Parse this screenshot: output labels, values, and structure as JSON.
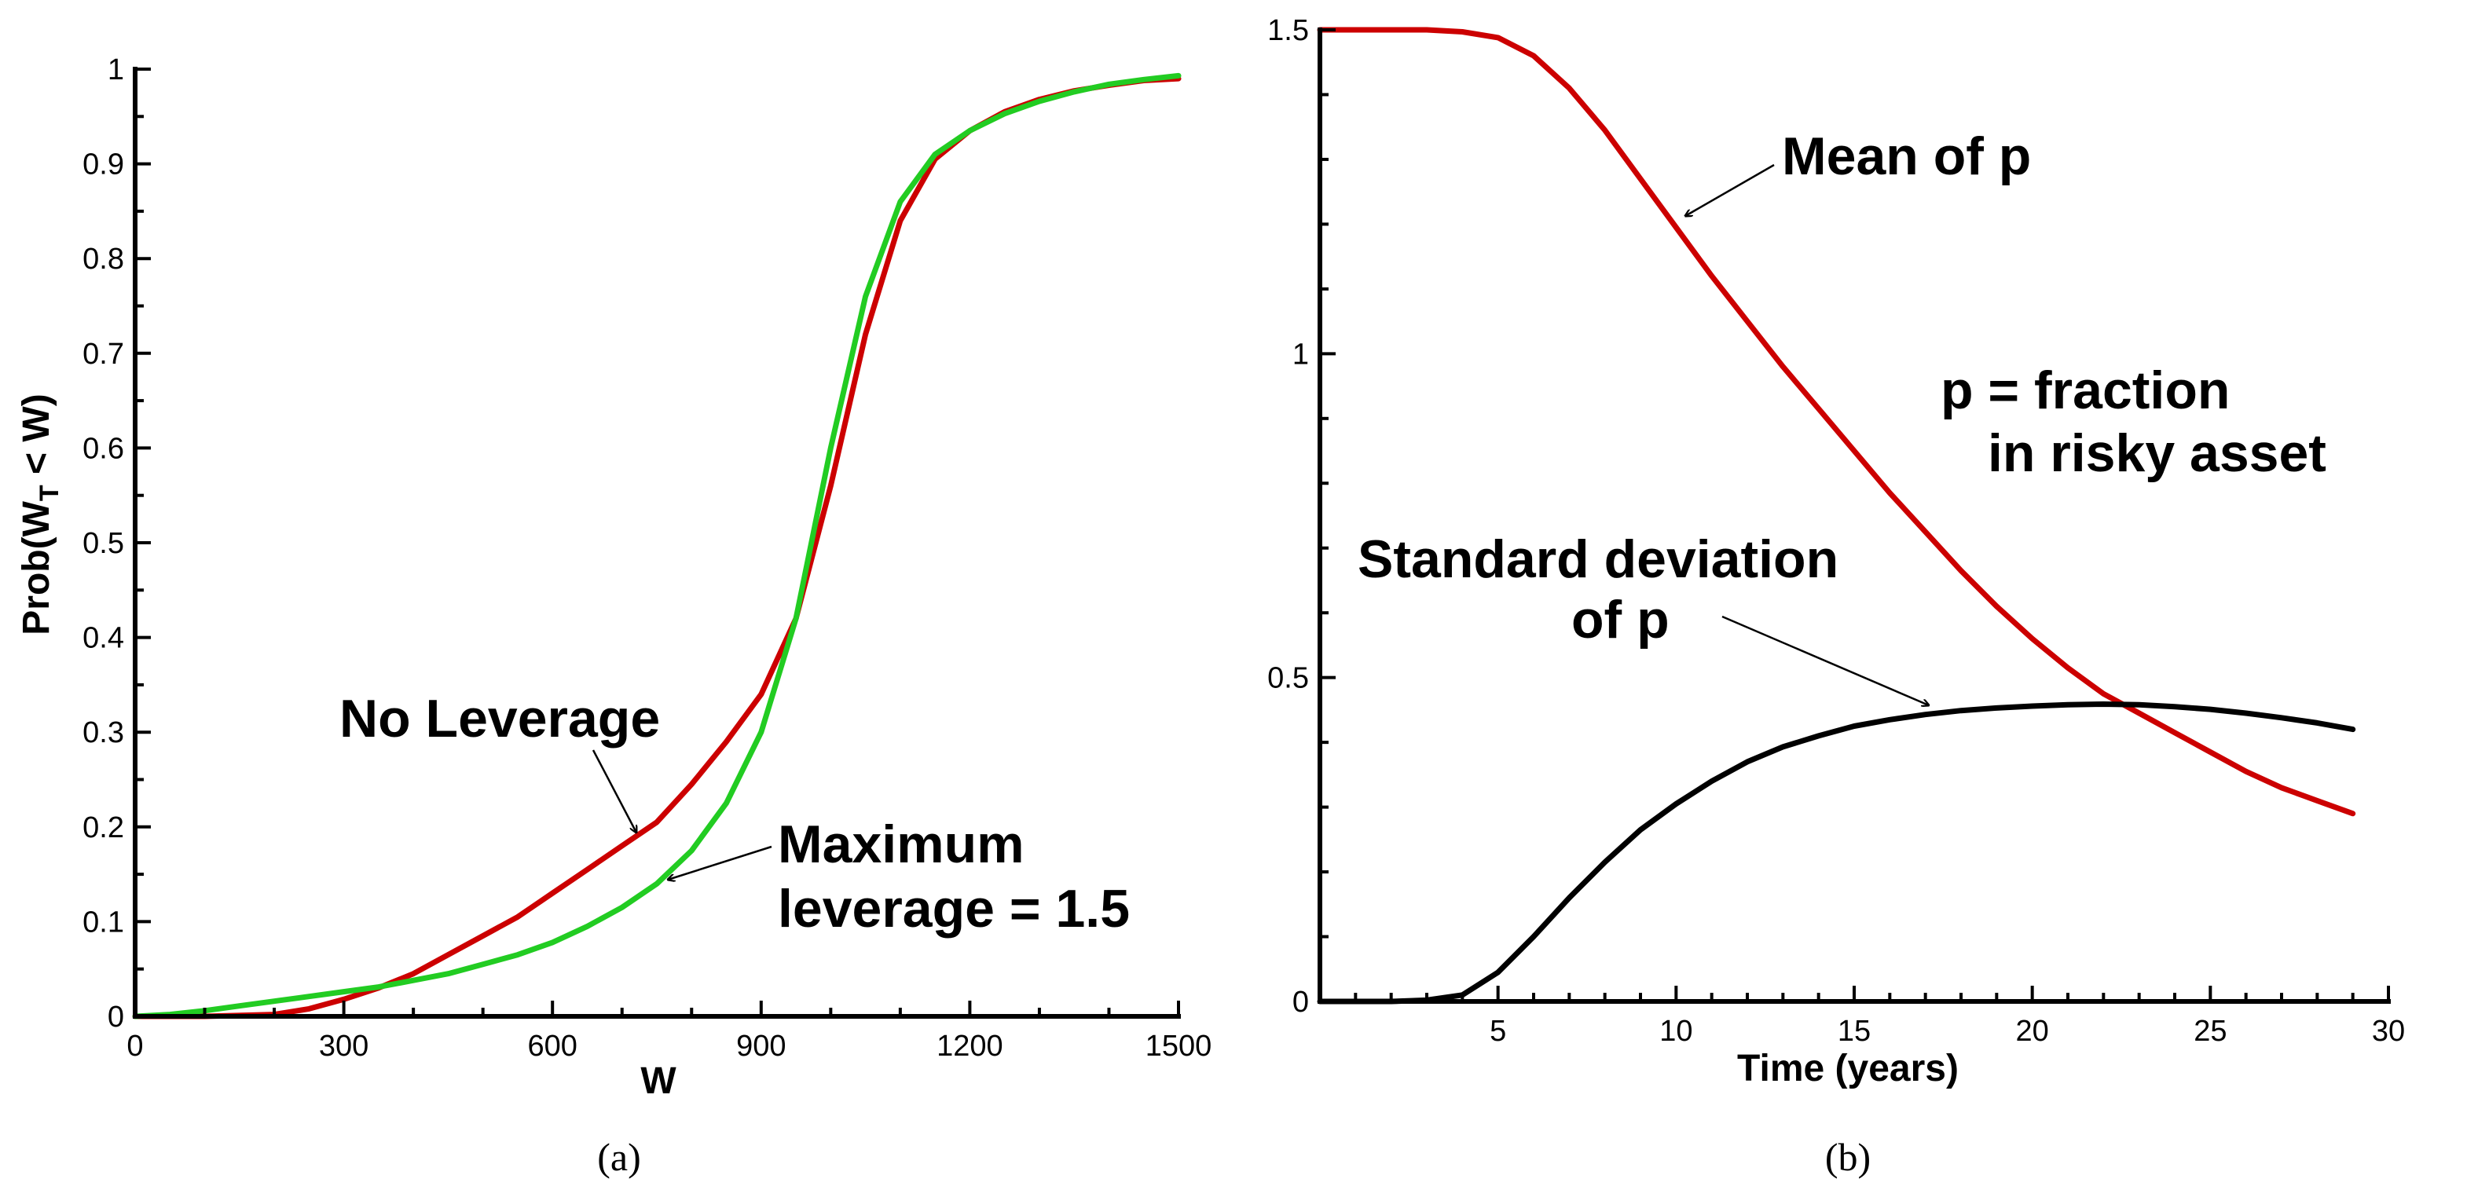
{
  "chart_data": [
    {
      "type": "line",
      "panel_label": "(a)",
      "xlabel": "W",
      "ylabel": "Prob(W_T < W)",
      "ylabel_parts": {
        "main": "Prob(W",
        "sub": "T",
        "rest": " < W)"
      },
      "xlim": [
        0,
        1500
      ],
      "ylim": [
        0,
        1
      ],
      "xticks": [
        0,
        300,
        600,
        900,
        1200,
        1500
      ],
      "yticks": [
        0,
        0.1,
        0.2,
        0.3,
        0.4,
        0.5,
        0.6,
        0.7,
        0.8,
        0.9,
        1
      ],
      "ytick_labels": [
        "0",
        "0.1",
        "0.2",
        "0.3",
        "0.4",
        "0.5",
        "0.6",
        "0.7",
        "0.8",
        "0.9",
        "1"
      ],
      "series": [
        {
          "name": "No Leverage",
          "color": "#cc0000",
          "x": [
            0,
            100,
            200,
            250,
            300,
            350,
            400,
            450,
            500,
            550,
            600,
            650,
            700,
            750,
            800,
            850,
            900,
            950,
            1000,
            1050,
            1100,
            1150,
            1200,
            1250,
            1300,
            1350,
            1400,
            1450,
            1500
          ],
          "y": [
            0,
            0,
            0.002,
            0.008,
            0.018,
            0.03,
            0.045,
            0.065,
            0.085,
            0.105,
            0.13,
            0.155,
            0.18,
            0.205,
            0.245,
            0.29,
            0.34,
            0.42,
            0.56,
            0.72,
            0.84,
            0.905,
            0.935,
            0.955,
            0.968,
            0.977,
            0.983,
            0.988,
            0.99
          ]
        },
        {
          "name": "Maximum leverage = 1.5",
          "color": "#22cc22",
          "x": [
            0,
            50,
            100,
            150,
            200,
            250,
            300,
            350,
            400,
            450,
            500,
            550,
            600,
            650,
            700,
            750,
            800,
            850,
            900,
            950,
            1000,
            1050,
            1100,
            1150,
            1200,
            1250,
            1300,
            1350,
            1400,
            1450,
            1500
          ],
          "y": [
            0,
            0.002,
            0.006,
            0.011,
            0.016,
            0.021,
            0.026,
            0.031,
            0.038,
            0.045,
            0.055,
            0.065,
            0.078,
            0.095,
            0.115,
            0.14,
            0.175,
            0.225,
            0.3,
            0.42,
            0.6,
            0.76,
            0.86,
            0.91,
            0.935,
            0.953,
            0.966,
            0.976,
            0.984,
            0.989,
            0.993
          ]
        }
      ],
      "annotations": [
        {
          "text": "No Leverage",
          "points_to_x": 720,
          "points_to_y": 0.183
        },
        {
          "text_lines": [
            "Maximum",
            "leverage = 1.5"
          ],
          "points_to_x": 760,
          "points_to_y": 0.135
        }
      ]
    },
    {
      "type": "line",
      "panel_label": "(b)",
      "xlabel": "Time (years)",
      "ylabel": "",
      "xlim": [
        0,
        30
      ],
      "ylim": [
        0,
        1.5
      ],
      "xticks": [
        5,
        10,
        15,
        20,
        25,
        30
      ],
      "yticks": [
        0,
        0.5,
        1,
        1.5
      ],
      "ytick_labels": [
        "0",
        "0.5",
        "1",
        "1.5"
      ],
      "series": [
        {
          "name": "Mean of p",
          "color": "#cc0000",
          "x": [
            0,
            1,
            2,
            3,
            4,
            5,
            6,
            7,
            8,
            9,
            10,
            11,
            12,
            13,
            14,
            15,
            16,
            17,
            18,
            19,
            20,
            21,
            22,
            23,
            24,
            25,
            26,
            27,
            28,
            29
          ],
          "y": [
            1.5,
            1.5,
            1.5,
            1.5,
            1.497,
            1.488,
            1.46,
            1.41,
            1.345,
            1.27,
            1.195,
            1.12,
            1.05,
            0.98,
            0.915,
            0.85,
            0.785,
            0.725,
            0.665,
            0.61,
            0.56,
            0.515,
            0.475,
            0.445,
            0.415,
            0.385,
            0.355,
            0.33,
            0.31,
            0.29
          ]
        },
        {
          "name": "Standard deviation of p",
          "color": "#000000",
          "x": [
            0,
            1,
            2,
            3,
            4,
            5,
            6,
            7,
            8,
            9,
            10,
            11,
            12,
            13,
            14,
            15,
            16,
            17,
            18,
            19,
            20,
            21,
            22,
            23,
            24,
            25,
            26,
            27,
            28,
            29
          ],
          "y": [
            0,
            0,
            0,
            0.002,
            0.01,
            0.045,
            0.1,
            0.16,
            0.215,
            0.265,
            0.305,
            0.34,
            0.37,
            0.393,
            0.41,
            0.425,
            0.435,
            0.443,
            0.449,
            0.453,
            0.456,
            0.458,
            0.459,
            0.458,
            0.455,
            0.451,
            0.445,
            0.438,
            0.43,
            0.42
          ]
        }
      ],
      "annotations": [
        {
          "text": "Mean of p",
          "points_to_x": 10.3,
          "points_to_y": 1.21
        },
        {
          "text_lines": [
            "p = fraction",
            "in risky asset"
          ]
        },
        {
          "text_lines": [
            "Standard deviation",
            "of p"
          ],
          "points_to_x": 17.5,
          "points_to_y": 0.45
        }
      ]
    }
  ]
}
